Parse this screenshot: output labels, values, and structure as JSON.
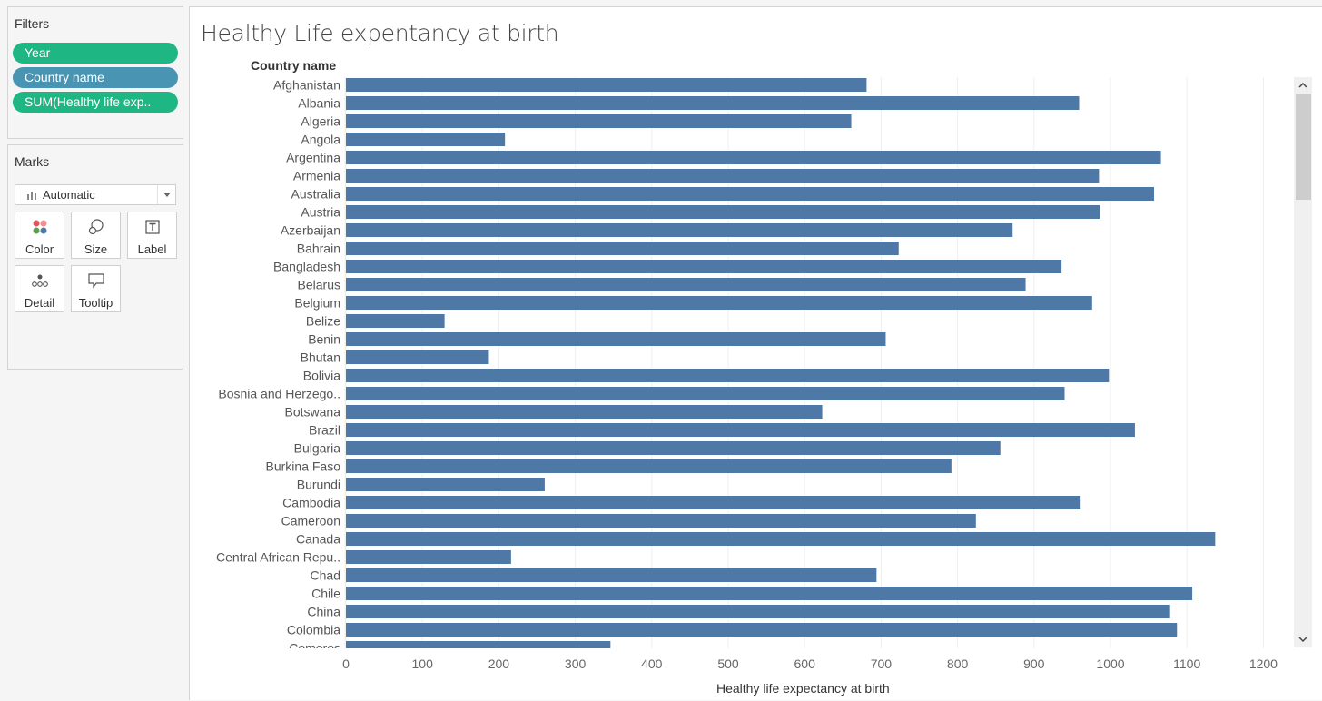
{
  "filters": {
    "title": "Filters",
    "pills": [
      {
        "label": "Year",
        "color": "#1eb683"
      },
      {
        "label": "Country name",
        "color": "#4a94b3"
      },
      {
        "label": "SUM(Healthy life exp..",
        "color": "#1eb683"
      }
    ]
  },
  "marks": {
    "title": "Marks",
    "type": "Automatic",
    "cards": [
      {
        "label": "Color",
        "icon": "color-icon"
      },
      {
        "label": "Size",
        "icon": "size-icon"
      },
      {
        "label": "Label",
        "icon": "label-icon"
      },
      {
        "label": "Detail",
        "icon": "detail-icon"
      },
      {
        "label": "Tooltip",
        "icon": "tooltip-icon"
      }
    ]
  },
  "view": {
    "title": "Healthy Life expentancy at birth",
    "row_header": "Country name"
  },
  "chart_data": {
    "type": "bar",
    "orientation": "horizontal",
    "title": "Healthy Life expentancy at birth",
    "ylabel": "Country name",
    "xlabel": "Healthy life expectancy at birth",
    "xlim": [
      0,
      1240
    ],
    "xticks": [
      0,
      100,
      200,
      300,
      400,
      500,
      600,
      700,
      800,
      900,
      1000,
      1100,
      1200
    ],
    "bar_color": "#4e79a7",
    "grid": true,
    "categories": [
      "Afghanistan",
      "Albania",
      "Algeria",
      "Angola",
      "Argentina",
      "Armenia",
      "Australia",
      "Austria",
      "Azerbaijan",
      "Bahrain",
      "Bangladesh",
      "Belarus",
      "Belgium",
      "Belize",
      "Benin",
      "Bhutan",
      "Bolivia",
      "Bosnia and Herzego..",
      "Botswana",
      "Brazil",
      "Bulgaria",
      "Burkina Faso",
      "Burundi",
      "Cambodia",
      "Cameroon",
      "Canada",
      "Central African Repu..",
      "Chad",
      "Chile",
      "China",
      "Colombia",
      "Comoros"
    ],
    "values": [
      681,
      959,
      661,
      208,
      1066,
      985,
      1057,
      986,
      872,
      723,
      936,
      889,
      976,
      129,
      706,
      187,
      998,
      940,
      623,
      1032,
      856,
      792,
      260,
      961,
      824,
      1137,
      216,
      694,
      1107,
      1078,
      1087,
      346
    ]
  }
}
